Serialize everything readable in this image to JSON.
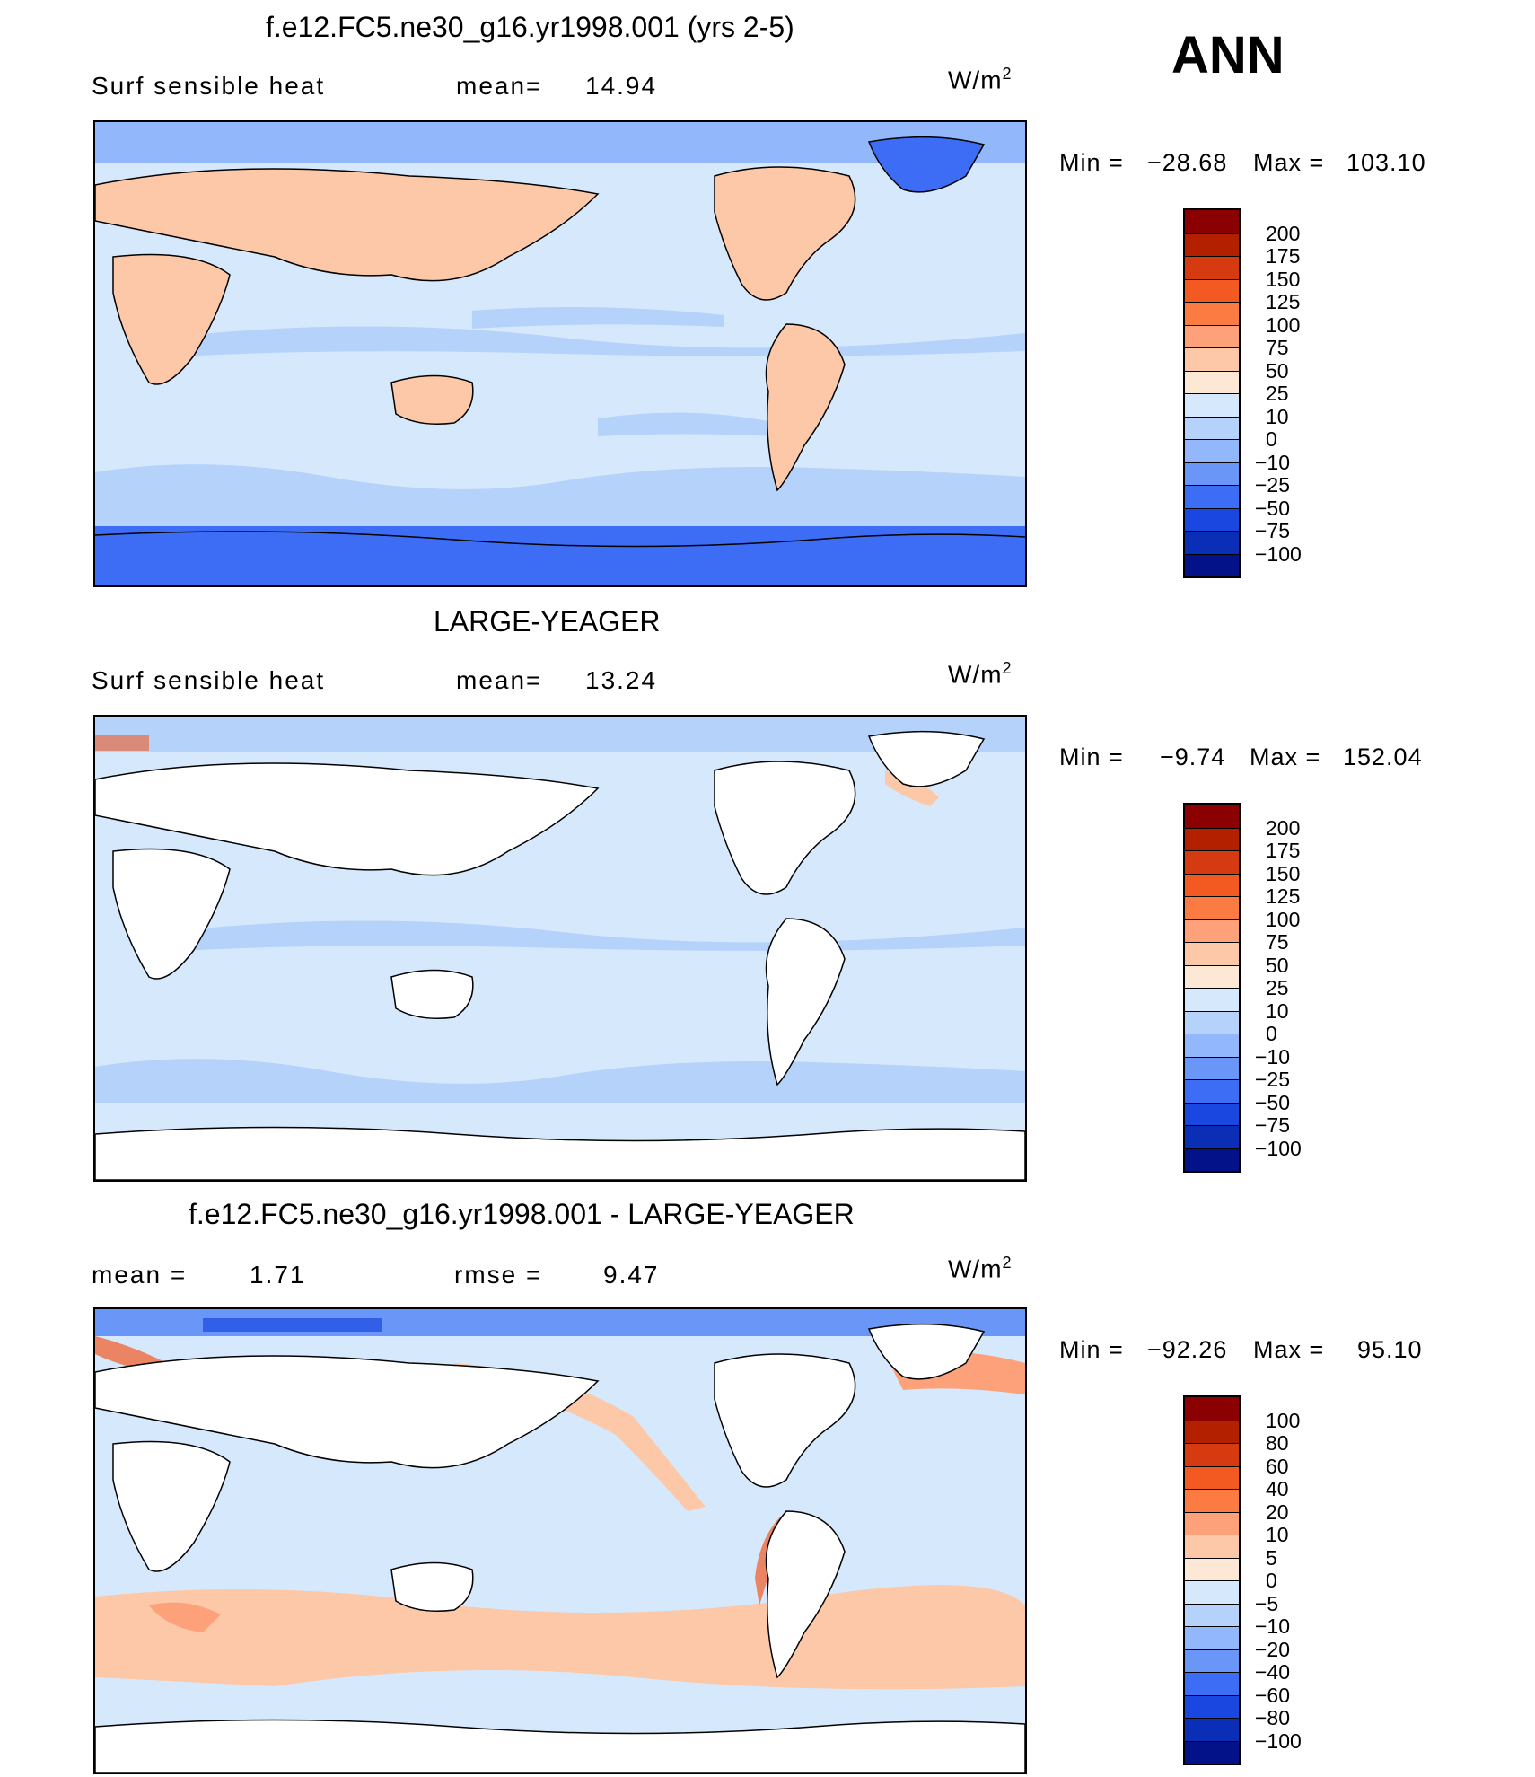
{
  "season": "ANN",
  "units": "W/m",
  "units_sup": "2",
  "panels": [
    {
      "title": "f.e12.FC5.ne30_g16.yr1998.001 (yrs 2-5)",
      "variable": "Surf  sensible  heat",
      "stat1_label": "mean=",
      "stat1_value": "14.94",
      "min_label": "Min  =",
      "min_value": "−28.68",
      "max_label": "Max  =",
      "max_value": "103.10",
      "colorbar_labels": [
        "200",
        "175",
        "150",
        "125",
        "100",
        "75",
        "50",
        "25",
        "10",
        "0",
        "−10",
        "−25",
        "−50",
        "−75",
        "−100"
      ],
      "colorbar_colors": [
        "#8b0000",
        "#b22000",
        "#d63a10",
        "#f25a22",
        "#fb7b43",
        "#fca17a",
        "#fdc8a8",
        "#fde8d6",
        "#d6e8fb",
        "#b5d2fb",
        "#92b7fa",
        "#6a96f7",
        "#3d6df5",
        "#1947e0",
        "#0b2eb6",
        "#04128a"
      ]
    },
    {
      "title": "LARGE-YEAGER",
      "variable": "Surf  sensible  heat",
      "stat1_label": "mean=",
      "stat1_value": "13.24",
      "min_label": "Min  =",
      "min_value": "−9.74",
      "max_label": "Max  =",
      "max_value": "152.04",
      "colorbar_labels": [
        "200",
        "175",
        "150",
        "125",
        "100",
        "75",
        "50",
        "25",
        "10",
        "0",
        "−10",
        "−25",
        "−50",
        "−75",
        "−100"
      ],
      "colorbar_colors": [
        "#8b0000",
        "#b22000",
        "#d63a10",
        "#f25a22",
        "#fb7b43",
        "#fca17a",
        "#fdc8a8",
        "#fde8d6",
        "#d6e8fb",
        "#b5d2fb",
        "#92b7fa",
        "#6a96f7",
        "#3d6df5",
        "#1947e0",
        "#0b2eb6",
        "#04128a"
      ]
    },
    {
      "title": "f.e12.FC5.ne30_g16.yr1998.001 - LARGE-YEAGER",
      "stat1_label": "mean  =",
      "stat1_value": "1.71",
      "stat2_label": "rmse  =",
      "stat2_value": "9.47",
      "min_label": "Min  =",
      "min_value": "−92.26",
      "max_label": "Max  =",
      "max_value": "95.10",
      "colorbar_labels": [
        "100",
        "80",
        "60",
        "40",
        "20",
        "10",
        "5",
        "0",
        "−5",
        "−10",
        "−20",
        "−40",
        "−60",
        "−80",
        "−100"
      ],
      "colorbar_colors": [
        "#8b0000",
        "#b22000",
        "#d63a10",
        "#f25a22",
        "#fb7b43",
        "#fca17a",
        "#fdc8a8",
        "#fde8d6",
        "#d6e8fb",
        "#b5d2fb",
        "#92b7fa",
        "#6a96f7",
        "#3d6df5",
        "#1947e0",
        "#0b2eb6",
        "#04128a"
      ]
    }
  ]
}
